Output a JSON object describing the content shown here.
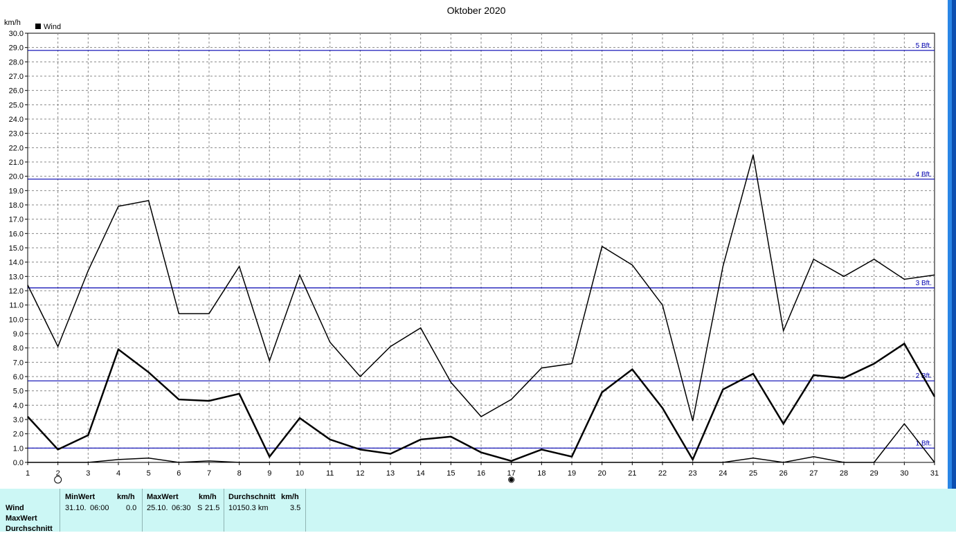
{
  "chart_data": {
    "type": "line",
    "title": "Oktober 2020",
    "ylabel": "km/h",
    "legend": [
      {
        "name": "Wind",
        "color": "#000000"
      }
    ],
    "ylim": [
      0,
      30
    ],
    "ytick_step": 1.0,
    "xlim": [
      1,
      31
    ],
    "x": [
      1,
      2,
      3,
      4,
      5,
      6,
      7,
      8,
      9,
      10,
      11,
      12,
      13,
      14,
      15,
      16,
      17,
      18,
      19,
      20,
      21,
      22,
      23,
      24,
      25,
      26,
      27,
      28,
      29,
      30,
      31
    ],
    "grid": true,
    "series": [
      {
        "role": "max",
        "stroke_width": 1.5,
        "values": [
          12.4,
          8.1,
          13.4,
          17.9,
          18.3,
          10.4,
          10.4,
          13.7,
          7.1,
          13.1,
          8.4,
          6.0,
          8.1,
          9.4,
          5.6,
          3.2,
          4.4,
          6.6,
          6.9,
          15.1,
          13.8,
          11.0,
          2.9,
          13.7,
          21.5,
          9.2,
          14.2,
          13.0,
          14.2,
          12.8,
          13.1
        ]
      },
      {
        "role": "average",
        "stroke_width": 2.5,
        "values": [
          3.2,
          0.9,
          1.9,
          7.9,
          6.3,
          4.4,
          4.3,
          4.8,
          0.4,
          3.1,
          1.6,
          0.9,
          0.6,
          1.6,
          1.8,
          0.7,
          0.1,
          0.9,
          0.4,
          4.9,
          6.5,
          3.8,
          0.2,
          5.1,
          6.2,
          2.7,
          6.1,
          5.9,
          6.9,
          8.3,
          4.6
        ]
      },
      {
        "role": "min",
        "stroke_width": 1.5,
        "values": [
          0.0,
          0.0,
          0.0,
          0.2,
          0.3,
          0.0,
          0.1,
          0.0,
          0.0,
          0.0,
          0.0,
          0.0,
          0.0,
          0.0,
          0.0,
          0.0,
          0.0,
          0.0,
          0.0,
          0.0,
          0.0,
          0.0,
          0.0,
          0.0,
          0.3,
          0.0,
          0.4,
          0.0,
          0.0,
          2.7,
          0.0
        ]
      }
    ],
    "reference_lines": [
      {
        "label": "1 Bft.",
        "value": 1.0
      },
      {
        "label": "2 Bft.",
        "value": 5.7
      },
      {
        "label": "3 Bft.",
        "value": 12.2
      },
      {
        "label": "4 Bft.",
        "value": 19.8
      },
      {
        "label": "5 Bft.",
        "value": 28.8
      }
    ],
    "reference_color": "#0000b0",
    "moon_markers": [
      {
        "x": 2,
        "phase": "full-moon"
      },
      {
        "x": 17,
        "phase": "new-moon"
      }
    ]
  },
  "stats": {
    "row_labels": [
      "Wind",
      "MaxWert",
      "Durchschnitt"
    ],
    "min": {
      "header": "MinWert",
      "unit": "km/h",
      "date": "31.10.",
      "time": "06:00",
      "value": "0.0"
    },
    "max": {
      "header": "MaxWert",
      "unit": "km/h",
      "date": "25.10.",
      "time": "06:30",
      "dir": "S",
      "value": "21.5"
    },
    "avg": {
      "header": "Durchschnitt",
      "unit": "km/h",
      "distance": "10150.3 km",
      "value": "3.5"
    }
  }
}
